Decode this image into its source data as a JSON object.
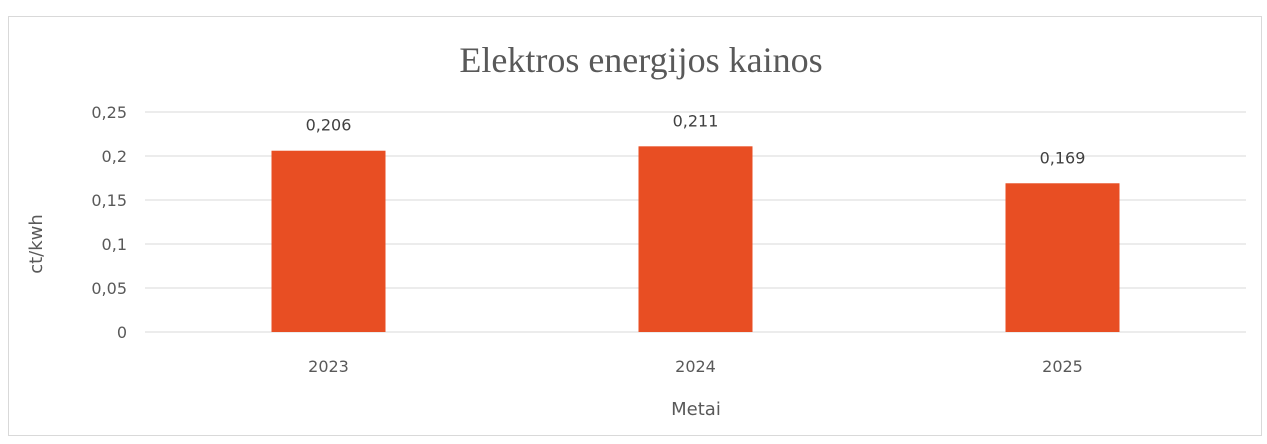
{
  "chart_data": {
    "type": "bar",
    "title": "Elektros energijos kainos",
    "xlabel": "Metai",
    "ylabel": "ct/kwh",
    "categories": [
      "2023",
      "2024",
      "2025"
    ],
    "values": [
      0.206,
      0.211,
      0.169
    ],
    "value_labels": [
      "0,206",
      "0,211",
      "0,169"
    ],
    "ylim": [
      0,
      0.25
    ],
    "yticks": [
      0,
      0.05,
      0.1,
      0.15,
      0.2,
      0.25
    ],
    "ytick_labels": [
      "0",
      "0,05",
      "0,1",
      "0,15",
      "0,2",
      "0,25"
    ],
    "grid": true,
    "legend": "none",
    "bar_color": "#E84E23",
    "gridline_color": "#d9d9d9",
    "text_color": "#595959"
  }
}
